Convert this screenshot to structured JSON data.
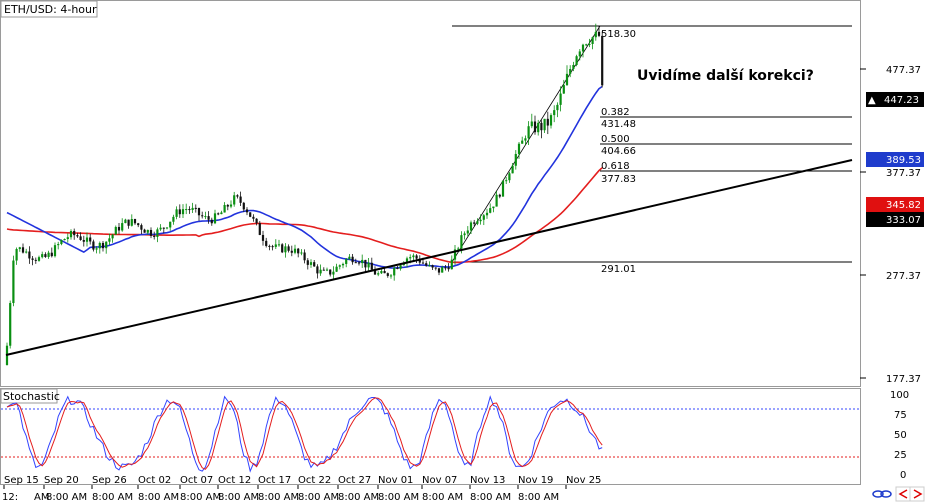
{
  "title": "ETH/USD: 4-hour",
  "annotation": "Uvidíme další korekci?",
  "colors": {
    "up": "#0a8f12",
    "down": "#111111",
    "sma_red": "#e41e1e",
    "sma_blue": "#2233dd",
    "stoch_red": "#e41e1e",
    "stoch_blue": "#3344ff",
    "badge_black": "#000000",
    "badge_blue": "#1f3ccc",
    "badge_red": "#e01010"
  },
  "price_axis": {
    "ticks": [
      477.37,
      377.37,
      277.37,
      177.37
    ]
  },
  "price_badges": [
    {
      "value": "447.23",
      "color": "black",
      "marker": "▲"
    },
    {
      "value": "389.53",
      "color": "blue"
    },
    {
      "value": "345.82",
      "color": "red"
    },
    {
      "value": "333.07",
      "color": "black"
    }
  ],
  "fibonacci": {
    "labels": [
      "518.30",
      "0.382",
      "431.48",
      "0.500",
      "404.66",
      "0.618",
      "377.83",
      "291.01"
    ]
  },
  "stochastic": {
    "label": "Stochastic",
    "ticks": [
      "100",
      "75",
      "50",
      "25",
      "0"
    ]
  },
  "time_axis": {
    "dates": [
      "Sep 15",
      "Sep 20",
      "Sep 26",
      "Oct 02",
      "Oct 07",
      "Oct 12",
      "Oct 17",
      "Oct 22",
      "Oct 27",
      "Nov 01",
      "Nov 07",
      "Nov 13",
      "Nov 19",
      "Nov 25"
    ],
    "times": [
      "12:",
      "AM",
      "8:00 AM",
      "8:00 AM",
      "8:00 AM",
      "8:00 AM",
      "8:00 AM",
      "8:00 AM",
      "8:00 AM",
      "8:00 AM",
      "8:00 AM",
      "8:00 AM",
      "8:00 AM",
      "8:00 AM"
    ]
  },
  "chart_data": {
    "type": "candlestick",
    "symbol": "ETH/USD",
    "timeframe": "4-hour",
    "x_range": [
      "Sep 15",
      "Nov 27"
    ],
    "ylim": [
      170,
      540
    ],
    "key_points": [
      {
        "x": "Sep 15",
        "y": 190
      },
      {
        "x": "Sep 18",
        "y": 295
      },
      {
        "x": "Oct 12",
        "y": 345
      },
      {
        "x": "Oct 20",
        "y": 288
      },
      {
        "x": "Nov 01",
        "y": 285
      },
      {
        "x": "Nov 07",
        "y": 291
      },
      {
        "x": "Nov 13",
        "y": 350
      },
      {
        "x": "Nov 19",
        "y": 440
      },
      {
        "x": "Nov 24",
        "y": 518
      },
      {
        "x": "Nov 26",
        "y": 447
      }
    ],
    "moving_averages": [
      {
        "color": "red",
        "last": 345.82
      },
      {
        "color": "blue",
        "last": 389.53
      }
    ],
    "trendline": {
      "from": {
        "x": "Sep 15",
        "y": 190
      },
      "to": {
        "x": "Nov 27",
        "y": 395
      }
    },
    "fibonacci_retracement": {
      "high": 518.3,
      "low": 291.01,
      "levels": [
        {
          "ratio": 0.382,
          "price": 431.48
        },
        {
          "ratio": 0.5,
          "price": 404.66
        },
        {
          "ratio": 0.618,
          "price": 377.83
        }
      ]
    },
    "stochastic": {
      "ylim": [
        0,
        100
      ],
      "levels": [
        80,
        20
      ]
    }
  }
}
